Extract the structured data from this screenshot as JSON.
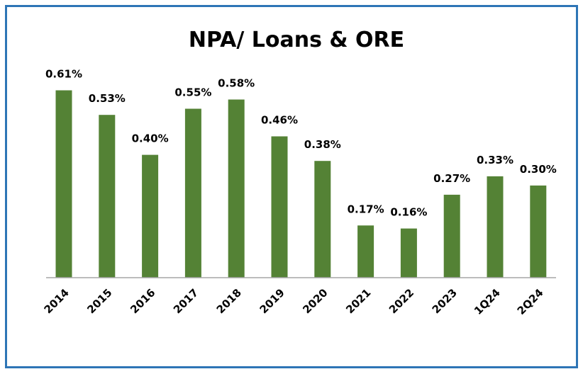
{
  "chart_data": {
    "type": "bar",
    "title": "NPA/ Loans & ORE",
    "xlabel": "",
    "ylabel": "",
    "categories": [
      "2014",
      "2015",
      "2016",
      "2017",
      "2018",
      "2019",
      "2020",
      "2021",
      "2022",
      "2023",
      "1Q24",
      "2Q24"
    ],
    "values": [
      0.61,
      0.53,
      0.4,
      0.55,
      0.58,
      0.46,
      0.38,
      0.17,
      0.16,
      0.27,
      0.33,
      0.3
    ],
    "data_labels": [
      "0.61%",
      "0.53%",
      "0.40%",
      "0.55%",
      "0.58%",
      "0.46%",
      "0.38%",
      "0.17%",
      "0.16%",
      "0.27%",
      "0.33%",
      "0.30%"
    ],
    "ylim": [
      0,
      0.65
    ],
    "grid": false,
    "legend": "none",
    "bar_color": "#548235",
    "frame_color": "#2e75b6"
  }
}
